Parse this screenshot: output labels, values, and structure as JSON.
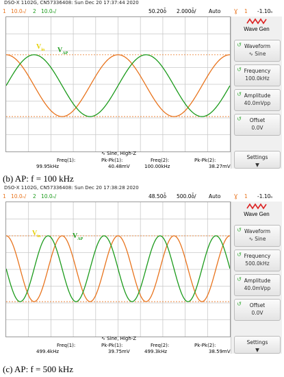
{
  "figure_captions": {
    "b": "(b) AP: f = 100 kHz",
    "c": "(c) AP: f = 500 kHz"
  },
  "scopes": [
    {
      "header": "DSO-X 1102G, CN57336408: Sun Dec 20 17:37:44 2020",
      "ch1_scale": "10.0ₙ/",
      "ch1_num": "1",
      "ch2_num": "2",
      "ch2_scale": "10.0ₙ/",
      "time_pos": "50.20ȱ",
      "time_scale": "2.000ȱ/",
      "trig_mode": "Auto",
      "trig_icon": "Ɣ",
      "trig_ch": "1",
      "trig_level": "-1.10ₙ",
      "label_vin": "V",
      "label_vin_sub": "in",
      "label_vap": "V",
      "label_vap_sub": "AP",
      "cycles_in_view": 2,
      "phase_vin": 0.25,
      "phase_vap": 0.0,
      "ref_level_top": 0.28,
      "ref_level_bot": 0.74,
      "meas_info": "∿ Sine, High-Z",
      "freq1_label": "Freq(1):",
      "freq1_val": "99.95kHz",
      "pkpk1_label": "Pk-Pk(1):",
      "pkpk1_val": "40.48mV",
      "freq2_label": "Freq(2):",
      "freq2_val": "100.00kHz",
      "pkpk2_label": "Pk-Pk(2):",
      "pkpk2_val": "38.27mV",
      "wavegen": {
        "title": "Wave Gen",
        "waveform_label": "Waveform",
        "waveform_val": "∿ Sine",
        "frequency_label": "Frequency",
        "frequency_val": "100.0kHz",
        "amplitude_label": "Amplitude",
        "amplitude_val": "40.0mVpp",
        "offset_label": "Offset",
        "offset_val": "0.0V",
        "settings_label": "Settings"
      }
    },
    {
      "header": "DSO-X 1102G, CN57336408: Sun Dec 20 17:38:28 2020",
      "ch1_scale": "10.0ₙ/",
      "ch1_num": "1",
      "ch2_num": "2",
      "ch2_scale": "10.0ₙ/",
      "time_pos": "48.50ȱ",
      "time_scale": "500.0ȱ/",
      "trig_mode": "Auto",
      "trig_icon": "Ɣ",
      "trig_ch": "1",
      "trig_level": "-1.10ₙ",
      "label_vin": "V",
      "label_vin_sub": "in",
      "label_vap": "V",
      "label_vap_sub": "AP",
      "cycles_in_view": 4,
      "phase_vin": 0.25,
      "phase_vap": 0.5,
      "ref_level_top": 0.25,
      "ref_level_bot": 0.74,
      "meas_info": "∿ Sine, High-Z",
      "freq1_label": "Freq(1):",
      "freq1_val": "499.4kHz",
      "pkpk1_label": "Pk-Pk(1):",
      "pkpk1_val": "39.75mV",
      "freq2_label": "Freq(2):",
      "freq2_val": "499.3kHz",
      "pkpk2_label": "Pk-Pk(2):",
      "pkpk2_val": "38.59mV",
      "wavegen": {
        "title": "Wave Gen",
        "waveform_label": "Waveform",
        "waveform_val": "∿ Sine",
        "frequency_label": "Frequency",
        "frequency_val": "500.0kHz",
        "amplitude_label": "Amplitude",
        "amplitude_val": "40.0mVpp",
        "offset_label": "Offset",
        "offset_val": "0.0V",
        "settings_label": "Settings"
      }
    }
  ],
  "colors": {
    "ch1": "#e8731c",
    "ch2": "#1a9a1a",
    "vin_label": "#e6d000",
    "vap_label": "#1a9a1a",
    "grid": "#c8c8c8"
  }
}
